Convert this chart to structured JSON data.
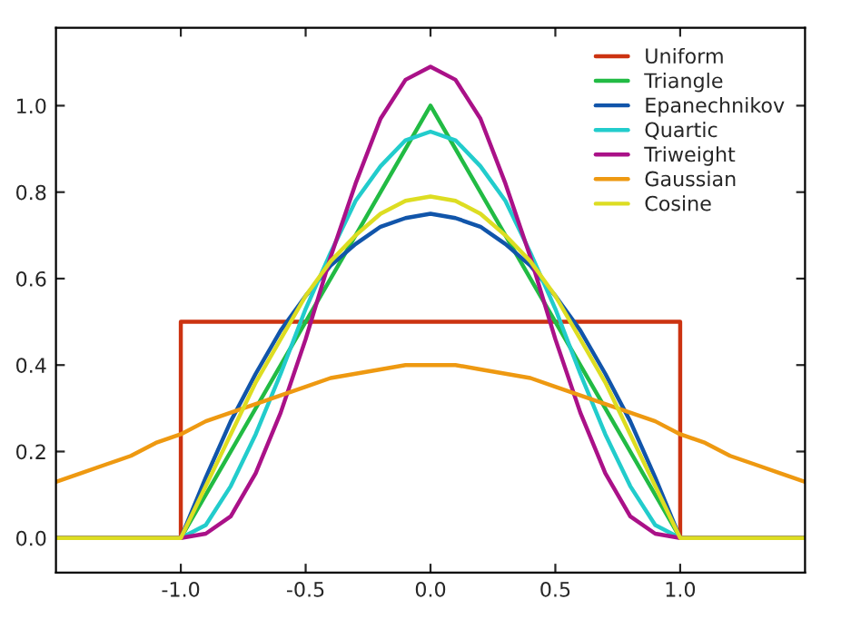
{
  "chart_data": {
    "type": "line",
    "xlim": [
      -1.5,
      1.5
    ],
    "ylim": [
      -0.08,
      1.18
    ],
    "xticks": [
      {
        "value": -1.0,
        "label": "-1.0"
      },
      {
        "value": -0.5,
        "label": "-0.5"
      },
      {
        "value": 0.0,
        "label": "0.0"
      },
      {
        "value": 0.5,
        "label": "0.5"
      },
      {
        "value": 1.0,
        "label": "1.0"
      }
    ],
    "yticks": [
      {
        "value": 0.0,
        "label": "0.0"
      },
      {
        "value": 0.2,
        "label": "0.2"
      },
      {
        "value": 0.4,
        "label": "0.4"
      },
      {
        "value": 0.6,
        "label": "0.6"
      },
      {
        "value": 0.8,
        "label": "0.8"
      },
      {
        "value": 1.0,
        "label": "1.0"
      }
    ],
    "grid": false,
    "legend": "top right",
    "series": [
      {
        "name": "Uniform",
        "color": "#cc3311",
        "x": [
          -1.5,
          -1.0,
          -1.0,
          1.0,
          1.0,
          1.5
        ],
        "values": [
          0,
          0,
          0.5,
          0.5,
          0,
          0
        ]
      },
      {
        "name": "Triangle",
        "color": "#22bb44",
        "x": [
          -1.5,
          -1.0,
          0.0,
          1.0,
          1.5
        ],
        "values": [
          0,
          0,
          1.0,
          0,
          0
        ]
      },
      {
        "name": "Epanechnikov",
        "color": "#1155aa",
        "x": [
          -1.5,
          -1.0,
          -0.9,
          -0.8,
          -0.7,
          -0.6,
          -0.5,
          -0.4,
          -0.3,
          -0.2,
          -0.1,
          0.0,
          0.1,
          0.2,
          0.3,
          0.4,
          0.5,
          0.6,
          0.7,
          0.8,
          0.9,
          1.0,
          1.5
        ],
        "values": [
          0,
          0,
          0.14,
          0.27,
          0.38,
          0.48,
          0.56,
          0.63,
          0.68,
          0.72,
          0.74,
          0.75,
          0.74,
          0.72,
          0.68,
          0.63,
          0.56,
          0.48,
          0.38,
          0.27,
          0.14,
          0,
          0
        ]
      },
      {
        "name": "Quartic",
        "color": "#22cccc",
        "x": [
          -1.5,
          -1.0,
          -0.9,
          -0.8,
          -0.7,
          -0.6,
          -0.5,
          -0.4,
          -0.3,
          -0.2,
          -0.1,
          0.0,
          0.1,
          0.2,
          0.3,
          0.4,
          0.5,
          0.6,
          0.7,
          0.8,
          0.9,
          1.0,
          1.5
        ],
        "values": [
          0,
          0,
          0.03,
          0.12,
          0.24,
          0.38,
          0.53,
          0.66,
          0.78,
          0.86,
          0.92,
          0.94,
          0.92,
          0.86,
          0.78,
          0.66,
          0.53,
          0.38,
          0.24,
          0.12,
          0.03,
          0,
          0
        ]
      },
      {
        "name": "Triweight",
        "color": "#aa1188",
        "x": [
          -1.5,
          -1.0,
          -0.9,
          -0.8,
          -0.7,
          -0.6,
          -0.5,
          -0.4,
          -0.3,
          -0.2,
          -0.1,
          0.0,
          0.1,
          0.2,
          0.3,
          0.4,
          0.5,
          0.6,
          0.7,
          0.8,
          0.9,
          1.0,
          1.5
        ],
        "values": [
          0,
          0,
          0.01,
          0.05,
          0.15,
          0.29,
          0.46,
          0.65,
          0.82,
          0.97,
          1.06,
          1.09,
          1.06,
          0.97,
          0.82,
          0.65,
          0.46,
          0.29,
          0.15,
          0.05,
          0.01,
          0,
          0
        ]
      },
      {
        "name": "Gaussian",
        "color": "#ee9911",
        "x": [
          -1.5,
          -1.4,
          -1.3,
          -1.2,
          -1.1,
          -1.0,
          -0.9,
          -0.8,
          -0.7,
          -0.6,
          -0.5,
          -0.4,
          -0.3,
          -0.2,
          -0.1,
          0.0,
          0.1,
          0.2,
          0.3,
          0.4,
          0.5,
          0.6,
          0.7,
          0.8,
          0.9,
          1.0,
          1.1,
          1.2,
          1.3,
          1.4,
          1.5
        ],
        "values": [
          0.13,
          0.15,
          0.17,
          0.19,
          0.22,
          0.24,
          0.27,
          0.29,
          0.31,
          0.33,
          0.35,
          0.37,
          0.38,
          0.39,
          0.4,
          0.4,
          0.4,
          0.39,
          0.38,
          0.37,
          0.35,
          0.33,
          0.31,
          0.29,
          0.27,
          0.24,
          0.22,
          0.19,
          0.17,
          0.15,
          0.13
        ]
      },
      {
        "name": "Cosine",
        "color": "#dddd22",
        "x": [
          -1.5,
          -1.0,
          -0.9,
          -0.8,
          -0.7,
          -0.6,
          -0.5,
          -0.4,
          -0.3,
          -0.2,
          -0.1,
          0.0,
          0.1,
          0.2,
          0.3,
          0.4,
          0.5,
          0.6,
          0.7,
          0.8,
          0.9,
          1.0,
          1.5
        ],
        "values": [
          0,
          0,
          0.12,
          0.24,
          0.36,
          0.46,
          0.56,
          0.64,
          0.7,
          0.75,
          0.78,
          0.79,
          0.78,
          0.75,
          0.7,
          0.64,
          0.56,
          0.46,
          0.36,
          0.24,
          0.12,
          0,
          0
        ]
      }
    ]
  }
}
